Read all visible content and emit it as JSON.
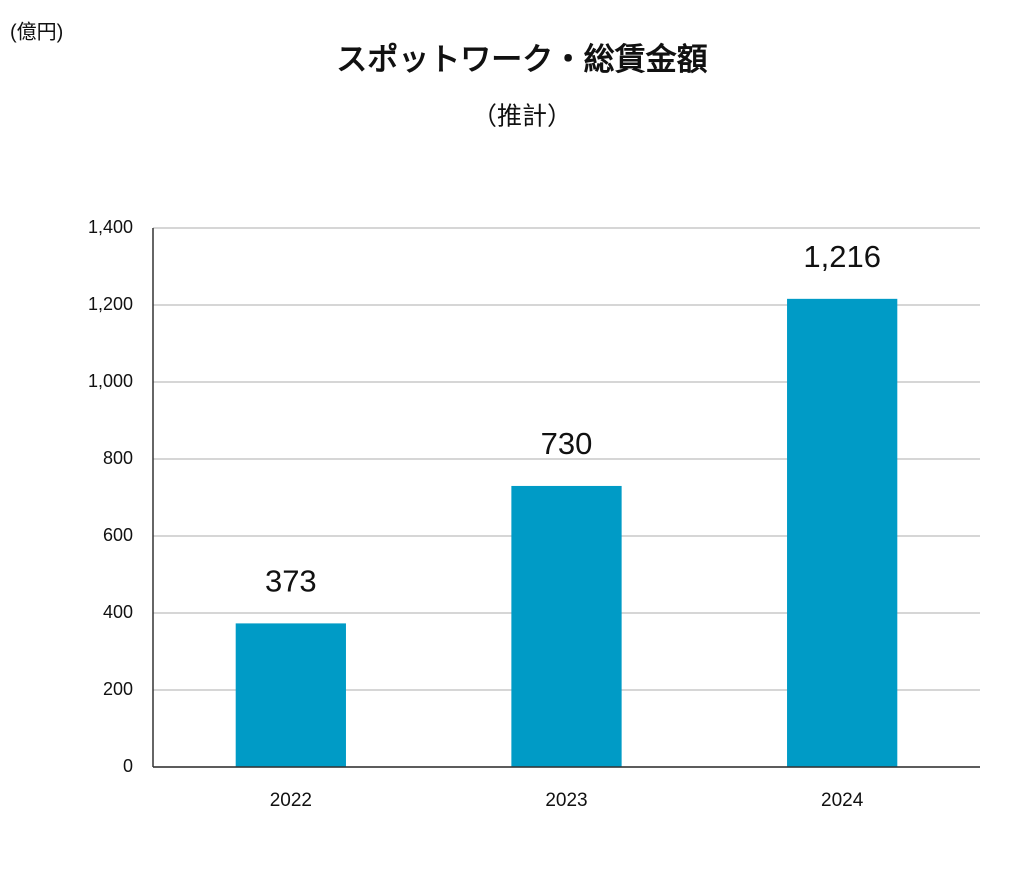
{
  "chart_data": {
    "type": "bar",
    "title": "スポットワーク・総賃金額",
    "subtitle": "（推計）",
    "unit_label": "(億円)",
    "categories": [
      "2022",
      "2023",
      "2024"
    ],
    "values": [
      373,
      730,
      1216
    ],
    "value_labels": [
      "373",
      "730",
      "1,216"
    ],
    "color": "#009bc6",
    "ylim": [
      0,
      1400
    ],
    "yticks": [
      0,
      200,
      400,
      600,
      800,
      {
        "value": 1000,
        "label": "1,000"
      },
      {
        "value": 1200,
        "label": "1,200"
      },
      {
        "value": 1400,
        "label": "1,400"
      }
    ],
    "grid": true
  }
}
